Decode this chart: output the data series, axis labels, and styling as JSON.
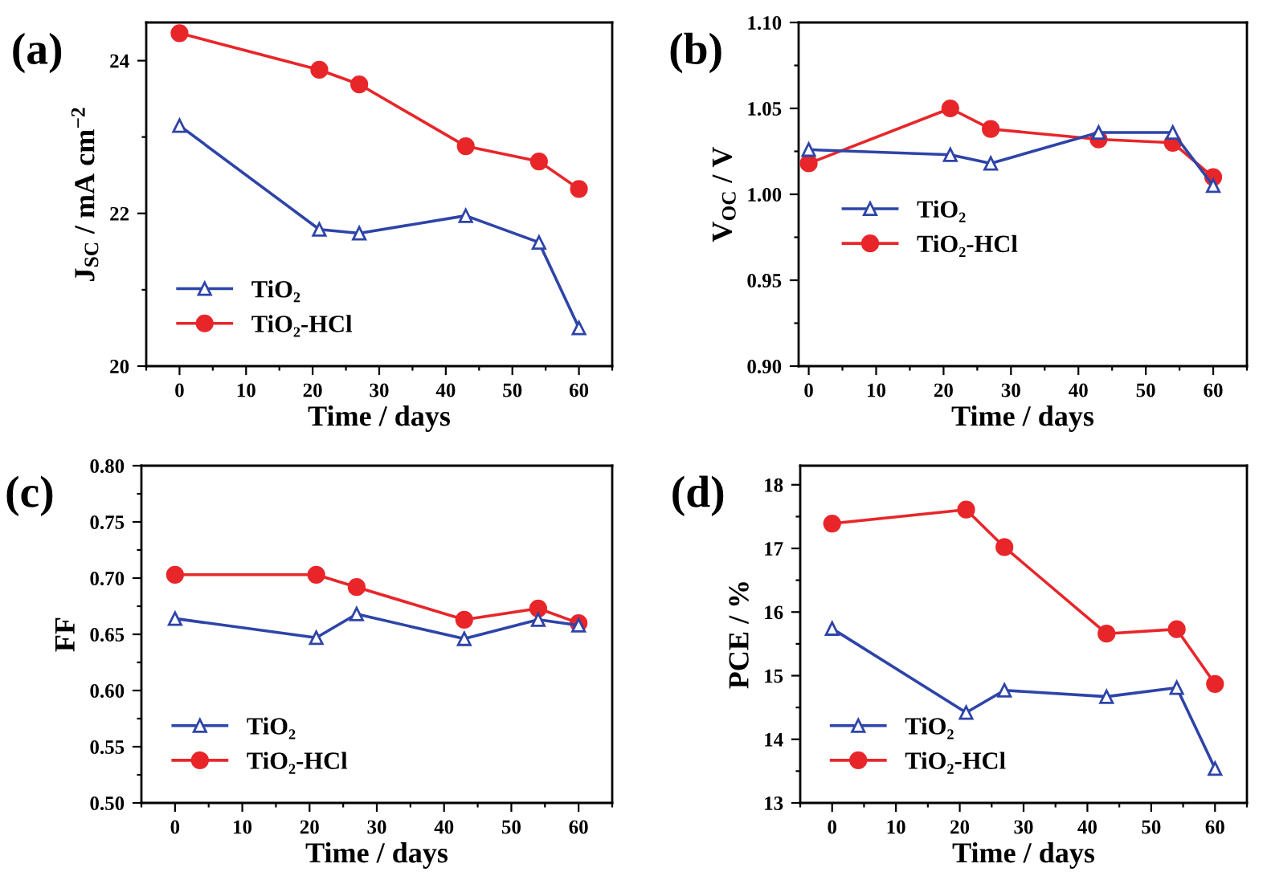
{
  "chart_data": [
    {
      "type": "line",
      "title": "(a)",
      "xlabel": "Time / days",
      "ylabel": "J$_{SC}$ / mA cm$^{−2}$",
      "x": [
        0,
        21,
        27,
        43,
        54,
        60
      ],
      "xlim": [
        -5,
        65
      ],
      "xticks": [
        0,
        10,
        20,
        30,
        40,
        50,
        60
      ],
      "ylim": [
        20,
        24.5
      ],
      "yticks": [
        20,
        22,
        24
      ],
      "legend": "lower left",
      "grid": false,
      "series": [
        {
          "name": "TiO₂",
          "color": "#2e44a8",
          "marker": "triangle",
          "values": [
            23.15,
            21.79,
            21.74,
            21.97,
            21.62,
            20.5
          ]
        },
        {
          "name": "TiO₂-HCl",
          "color": "#e8262a",
          "marker": "circle",
          "values": [
            24.36,
            23.88,
            23.69,
            22.88,
            22.68,
            22.32
          ]
        }
      ]
    },
    {
      "type": "line",
      "title": "(b)",
      "xlabel": "Time / days",
      "ylabel": "V$_{OC}$ / V",
      "x": [
        0,
        21,
        27,
        43,
        54,
        60
      ],
      "xlim": [
        -1.5,
        65
      ],
      "xticks": [
        0,
        10,
        20,
        30,
        40,
        50,
        60
      ],
      "ylim": [
        0.9,
        1.1
      ],
      "yticks": [
        {
          "value": 0.9,
          "label": "0.90"
        },
        {
          "value": 0.95,
          "label": "0.95"
        },
        {
          "value": 1.0,
          "label": "1.00"
        },
        {
          "value": 1.05,
          "label": "1.05"
        },
        {
          "value": 1.1,
          "label": "1.10"
        }
      ],
      "legend": "center left",
      "grid": false,
      "series": [
        {
          "name": "TiO₂",
          "color": "#2e44a8",
          "marker": "triangle",
          "values": [
            1.026,
            1.023,
            1.018,
            1.036,
            1.036,
            1.005
          ]
        },
        {
          "name": "TiO₂-HCl",
          "color": "#e8262a",
          "marker": "circle",
          "values": [
            1.018,
            1.05,
            1.038,
            1.032,
            1.03,
            1.01
          ]
        }
      ]
    },
    {
      "type": "line",
      "title": "(c)",
      "xlabel": "Time / days",
      "ylabel": "FF",
      "x": [
        0,
        21,
        27,
        43,
        54,
        60
      ],
      "xlim": [
        -5,
        65
      ],
      "xticks": [
        0,
        10,
        20,
        30,
        40,
        50,
        60
      ],
      "ylim": [
        0.5,
        0.8
      ],
      "yticks": [
        {
          "value": 0.5,
          "label": "0.50"
        },
        {
          "value": 0.55,
          "label": "0.55"
        },
        {
          "value": 0.6,
          "label": "0.60"
        },
        {
          "value": 0.65,
          "label": "0.65"
        },
        {
          "value": 0.7,
          "label": "0.70"
        },
        {
          "value": 0.75,
          "label": "0.75"
        },
        {
          "value": 0.8,
          "label": "0.80"
        }
      ],
      "legend": "lower left",
      "grid": false,
      "series": [
        {
          "name": "TiO₂",
          "color": "#2e44a8",
          "marker": "triangle",
          "values": [
            0.664,
            0.647,
            0.668,
            0.646,
            0.663,
            0.658
          ]
        },
        {
          "name": "TiO₂-HCl",
          "color": "#e8262a",
          "marker": "circle",
          "values": [
            0.703,
            0.703,
            0.692,
            0.663,
            0.673,
            0.66
          ]
        }
      ]
    },
    {
      "type": "line",
      "title": "(d)",
      "xlabel": "Time / days",
      "ylabel": "PCE / %",
      "x": [
        0,
        21,
        27,
        43,
        54,
        60
      ],
      "xlim": [
        -5,
        65
      ],
      "xticks": [
        0,
        10,
        20,
        30,
        40,
        50,
        60
      ],
      "ylim": [
        13,
        18.3
      ],
      "yticks": [
        13,
        14,
        15,
        16,
        17,
        18
      ],
      "legend": "lower left",
      "grid": false,
      "series": [
        {
          "name": "TiO₂",
          "color": "#2e44a8",
          "marker": "triangle",
          "values": [
            15.74,
            14.42,
            14.77,
            14.67,
            14.81,
            13.54
          ]
        },
        {
          "name": "TiO₂-HCl",
          "color": "#e8262a",
          "marker": "circle",
          "values": [
            17.39,
            17.61,
            17.02,
            15.66,
            15.73,
            14.87
          ]
        }
      ]
    }
  ]
}
